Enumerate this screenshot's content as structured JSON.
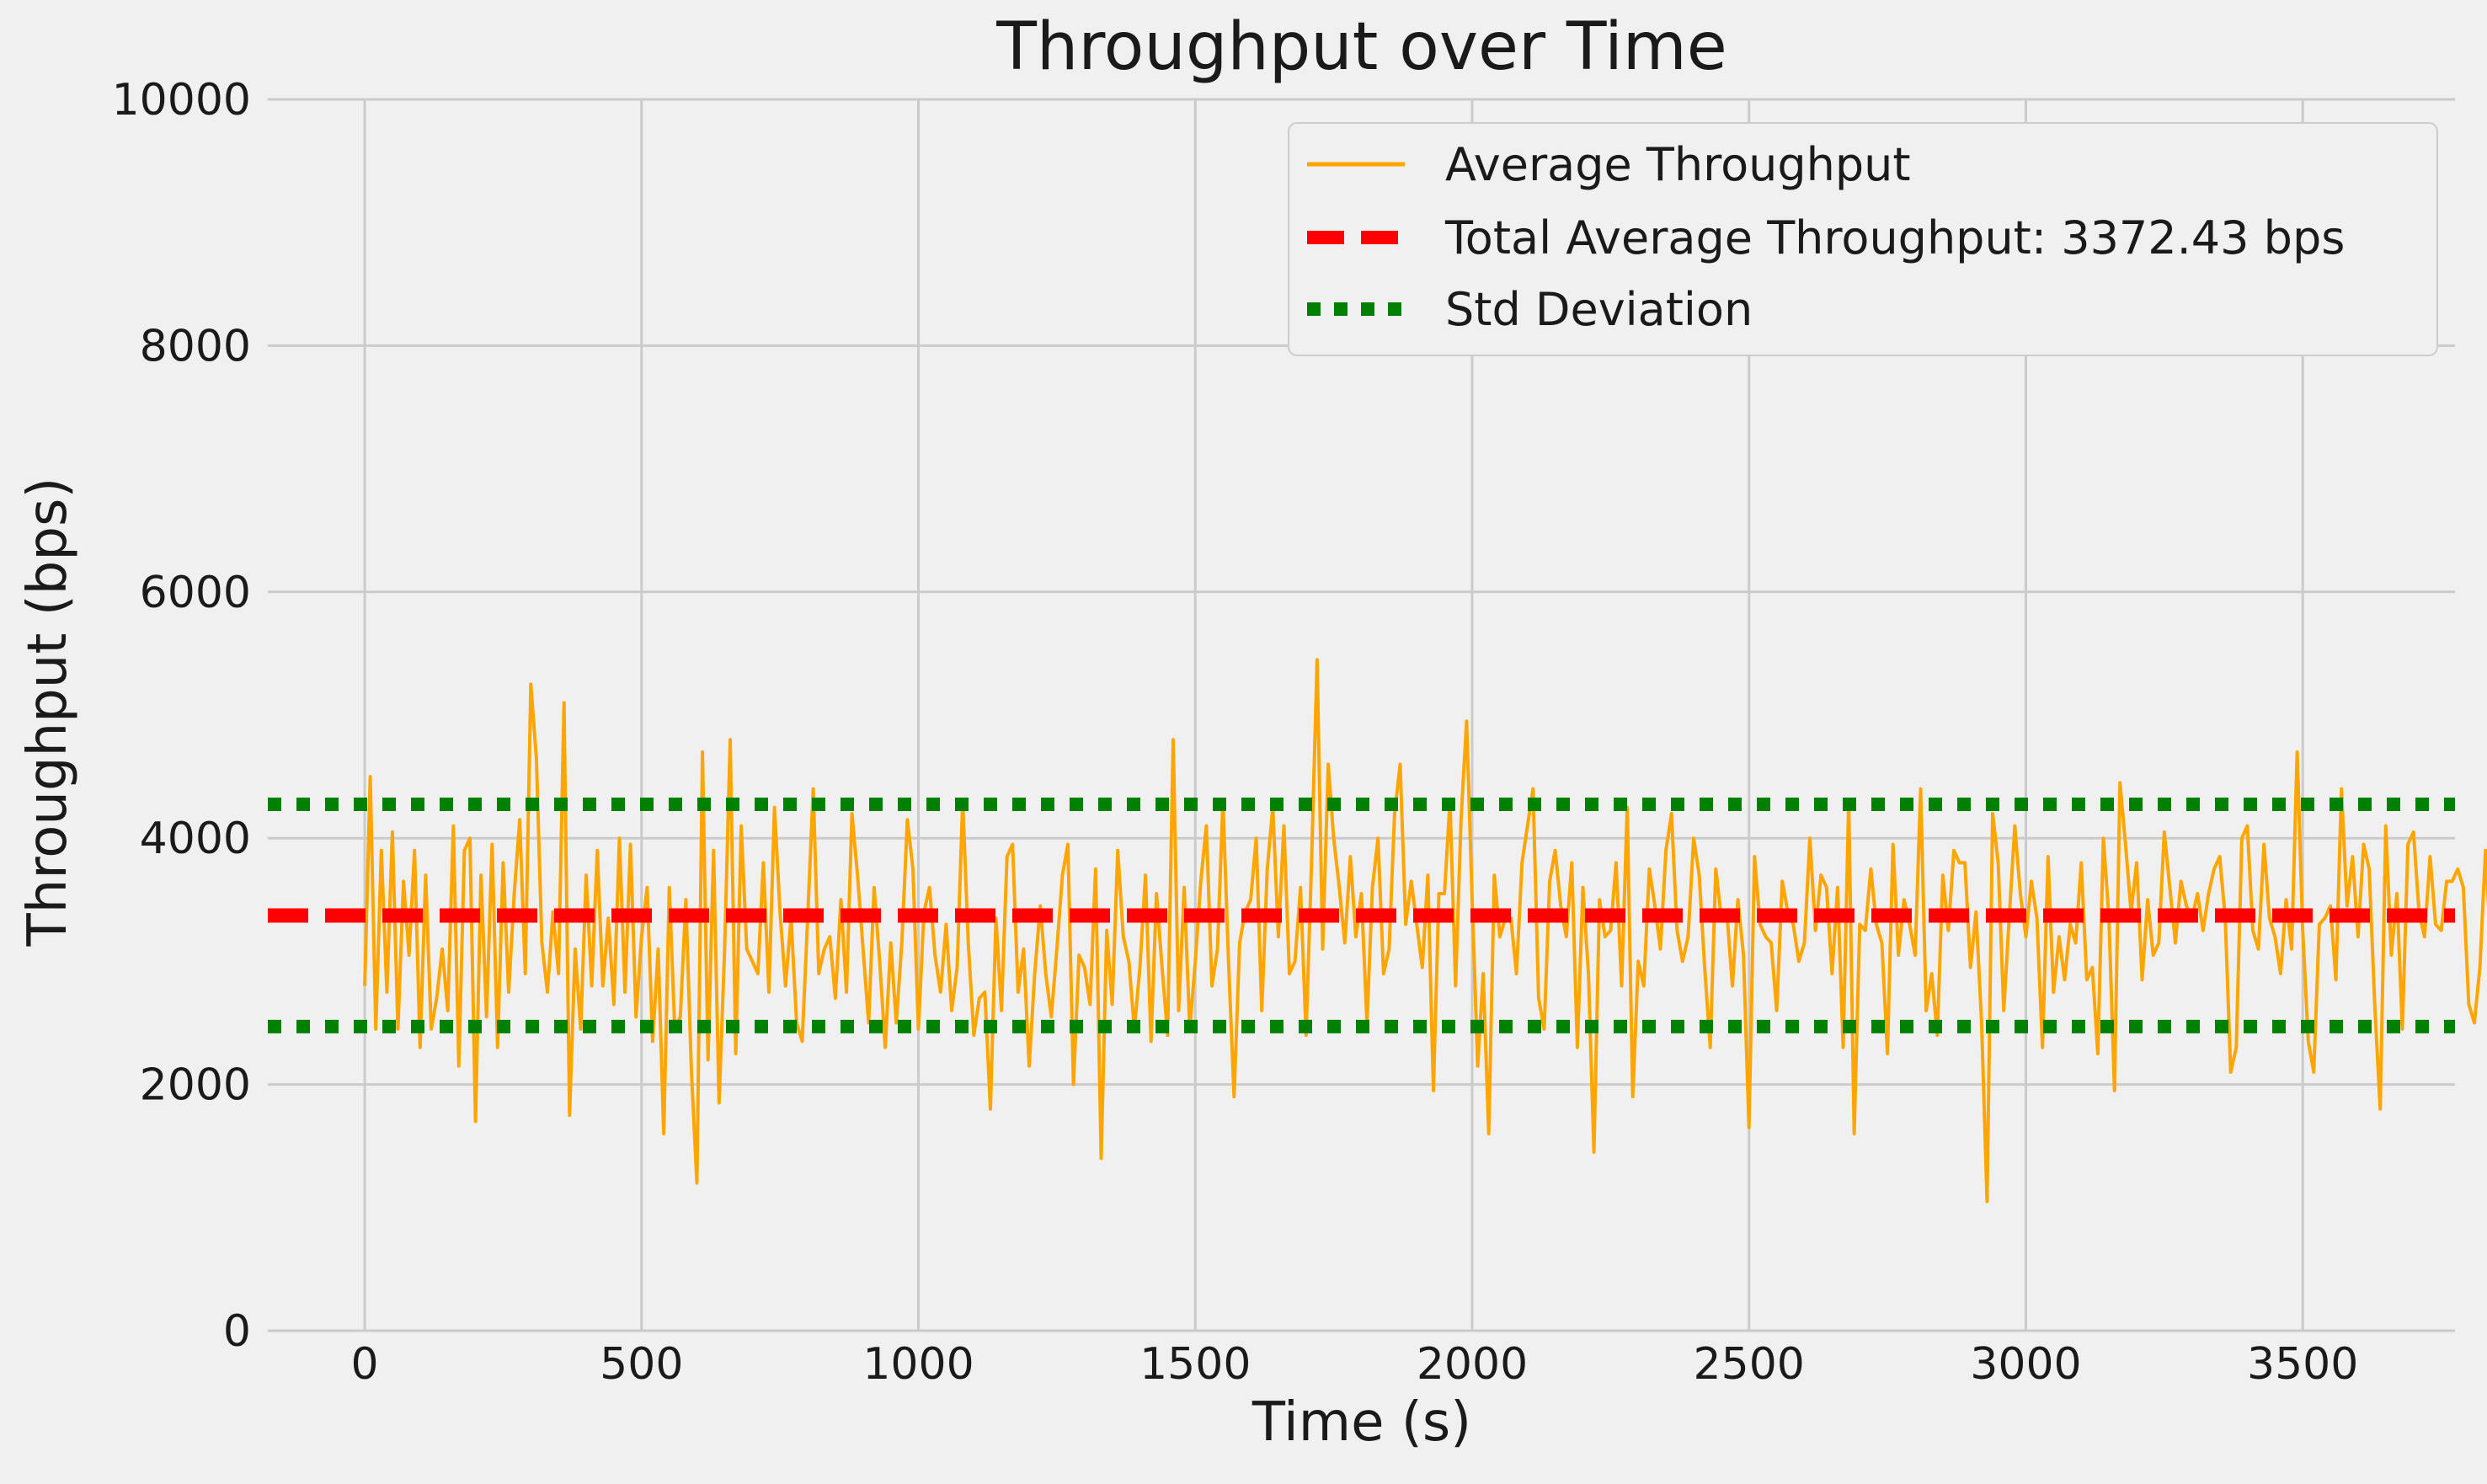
{
  "chart_data": {
    "type": "line",
    "title": "Throughput over Time",
    "xlabel": "Time (s)",
    "ylabel": "Throughput (bps)",
    "xlim": [
      -175,
      3775
    ],
    "ylim": [
      0,
      10000
    ],
    "xticks": [
      0,
      500,
      1000,
      1500,
      2000,
      2500,
      3000,
      3500
    ],
    "yticks": [
      0,
      2000,
      4000,
      6000,
      8000,
      10000
    ],
    "grid": true,
    "legend_position": "top-right",
    "series": [
      {
        "name": "Average Throughput",
        "style": "solid",
        "color": "#ffa500",
        "sample_interval_s": 10,
        "x_start": 0,
        "values": [
          2800,
          4500,
          2450,
          3900,
          2750,
          4050,
          2450,
          3650,
          3050,
          3900,
          2300,
          3700,
          2450,
          2700,
          3100,
          2600,
          4100,
          2150,
          3900,
          4000,
          1700,
          3700,
          2550,
          3950,
          2300,
          3800,
          2750,
          3550,
          4150,
          2900,
          5250,
          4650,
          3150,
          2750,
          3400,
          2900,
          5100,
          1750,
          3100,
          2450,
          3700,
          2800,
          3900,
          2800,
          3350,
          2650,
          4000,
          2750,
          3950,
          2550,
          3200,
          3600,
          2350,
          3100,
          1600,
          3600,
          2450,
          2550,
          3500,
          2100,
          1200,
          4700,
          2200,
          3900,
          1850,
          3100,
          4800,
          2250,
          4100,
          3100,
          3000,
          2900,
          3800,
          2750,
          4250,
          3400,
          2800,
          3350,
          2500,
          2350,
          3350,
          4400,
          2900,
          3100,
          3200,
          2700,
          3500,
          2750,
          4200,
          3700,
          3100,
          2500,
          3600,
          3000,
          2300,
          3150,
          2500,
          3150,
          4150,
          3750,
          2450,
          3400,
          3600,
          3050,
          2750,
          3300,
          2600,
          2950,
          4300,
          3150,
          2400,
          2700,
          2750,
          1800,
          3350,
          2600,
          3850,
          3950,
          2750,
          3100,
          2150,
          2900,
          3450,
          2900,
          2550,
          3100,
          3700,
          3950,
          2000,
          3050,
          2950,
          2650,
          3750,
          1400,
          3250,
          2650,
          3900,
          3200,
          3000,
          2450,
          2950,
          3700,
          2350,
          3550,
          2950,
          2400,
          4800,
          2600,
          3600,
          2450,
          3000,
          3650,
          4100,
          2800,
          3100,
          4300,
          3000,
          1900,
          3150,
          3400,
          3500,
          4000,
          2600,
          3750,
          4250,
          3200,
          4100,
          2900,
          3000,
          3600,
          2400,
          3800,
          5450,
          3100,
          4600,
          4000,
          3600,
          3150,
          3850,
          3200,
          3550,
          2500,
          3600,
          4000,
          2900,
          3100,
          4200,
          4600,
          3300,
          3650,
          3300,
          2950,
          3700,
          1950,
          3550,
          3550,
          4300,
          2800,
          4150,
          4950,
          3500,
          2150,
          2900,
          1600,
          3700,
          3200,
          3350,
          3350,
          2900,
          3800,
          4100,
          4400,
          2700,
          2450,
          3650,
          3900,
          3450,
          3200,
          3800,
          2300,
          3600,
          2900,
          1450,
          3500,
          3200,
          3250,
          3800,
          2800,
          4250,
          1900,
          3000,
          2800,
          3750,
          3450,
          3100,
          3900,
          4200,
          3250,
          3000,
          3200,
          4000,
          3700,
          2950,
          2300,
          3750,
          3350,
          3400,
          2800,
          3500,
          3050,
          1650,
          3850,
          3300,
          3200,
          3150,
          2600,
          3650,
          3400,
          3300,
          3000,
          3150,
          4000,
          3250,
          3700,
          3600,
          2900,
          3600,
          2300,
          4300,
          1600,
          3300,
          3250,
          3750,
          3300,
          3150,
          2250,
          3950,
          3050,
          3500,
          3300,
          3050,
          4400,
          2600,
          2900,
          2400,
          3700,
          3250,
          3900,
          3800,
          3800,
          2950,
          3400,
          2500,
          1050,
          4200,
          3800,
          2600,
          3350,
          4100,
          3550,
          3200,
          3650,
          3350,
          2300,
          3850,
          2750,
          3200,
          2850,
          3300,
          3150,
          3800,
          2850,
          2950,
          2250,
          4000,
          3350,
          1950,
          4450,
          3950,
          3400,
          3800,
          2850,
          3500,
          3050,
          3150,
          4050,
          3600,
          3150,
          3650,
          3450,
          3350,
          3550,
          3250,
          3550,
          3750,
          3850,
          3350,
          2100,
          2300,
          4000,
          4100,
          3250,
          3100,
          3950,
          3350,
          3200,
          2900,
          3500,
          3100,
          4700,
          3250,
          2350,
          2100,
          3300,
          3350,
          3450,
          2850,
          4400,
          3450,
          3850,
          3200,
          3950,
          3750,
          2650,
          1800,
          4100,
          3050,
          3550,
          2450,
          3950,
          4050,
          3400,
          3200,
          3850,
          3300,
          3250,
          3650,
          3650,
          3750,
          3600,
          2650,
          2500,
          2950,
          3900,
          3100,
          2900,
          2450,
          3950,
          3800,
          3700,
          3600,
          3150,
          2950,
          3900,
          3300,
          3250,
          3350,
          3800,
          3300,
          2750,
          3100,
          3600,
          3450,
          3300,
          3700,
          2650,
          3250,
          3300,
          3250,
          3050,
          2950,
          2800,
          3150,
          4000,
          2700,
          3250,
          4300,
          3500,
          3650,
          3700,
          3600,
          3050,
          3500,
          3350,
          2950,
          3350,
          4450,
          3450,
          2900,
          4300,
          3050,
          3450,
          3700,
          3400,
          3400,
          3050,
          3450,
          3550,
          4250,
          3200,
          4200,
          3500,
          3100,
          3300,
          3550,
          3500,
          3300,
          3900,
          3100,
          3550,
          2800,
          3650,
          3600,
          3300,
          3100,
          3650,
          3300,
          4000,
          3300,
          3700,
          3500,
          3350,
          3350,
          3200,
          2850,
          3700,
          3300,
          3600,
          2900,
          3550,
          3050,
          3500,
          3400,
          3100,
          4250,
          3350,
          3500,
          3650,
          3450,
          3600,
          3300,
          3400,
          3100,
          3450,
          3550,
          3250,
          3650,
          3350,
          3150,
          3500,
          3500,
          3350,
          2900,
          3550,
          3400,
          3650,
          3350,
          3850,
          3050,
          3450,
          3500,
          3500,
          3600,
          3700,
          3350,
          3250,
          3400,
          3600,
          3000,
          3400,
          3100,
          3650,
          3200,
          3600,
          3150,
          3500,
          3500,
          3150,
          3500,
          3400,
          3400,
          3250,
          3500,
          3450,
          3650,
          3300,
          3350,
          3600,
          3400,
          3450,
          3300,
          3450,
          3400,
          3450,
          3350,
          3300,
          3550,
          3400,
          3500,
          3350,
          3500,
          3300,
          3550,
          3300,
          3400,
          3500,
          3450,
          3300,
          3450,
          3350,
          3500,
          3400,
          3450,
          3400,
          3400,
          3450,
          3400,
          3450,
          3350,
          3400,
          3450,
          3400,
          3350,
          3450,
          3400,
          3400,
          3450,
          3400,
          3400,
          3400,
          3450,
          3400,
          3400,
          3400,
          3400,
          3400,
          3400,
          3400,
          3400,
          3400,
          3400,
          3400,
          3400,
          3400,
          3400,
          3400,
          3400,
          3400,
          3400,
          3400,
          3400,
          3400,
          3400,
          3400,
          3400,
          3400,
          3400,
          3400,
          3400,
          3400,
          3400,
          3400,
          3400
        ]
      },
      {
        "name": "Total Average Throughput: 3372.43 bps",
        "style": "dashed",
        "color": "#ff0000",
        "y": 3372.43
      },
      {
        "name": "Std Deviation",
        "style": "dotted",
        "color": "#008000",
        "y_values": [
          2470,
          4275
        ]
      }
    ]
  }
}
